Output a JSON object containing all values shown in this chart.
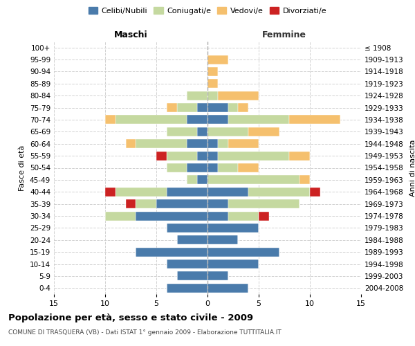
{
  "age_groups": [
    "100+",
    "95-99",
    "90-94",
    "85-89",
    "80-84",
    "75-79",
    "70-74",
    "65-69",
    "60-64",
    "55-59",
    "50-54",
    "45-49",
    "40-44",
    "35-39",
    "30-34",
    "25-29",
    "20-24",
    "15-19",
    "10-14",
    "5-9",
    "0-4"
  ],
  "birth_years": [
    "≤ 1908",
    "1909-1913",
    "1914-1918",
    "1919-1923",
    "1924-1928",
    "1929-1933",
    "1934-1938",
    "1939-1943",
    "1944-1948",
    "1949-1953",
    "1954-1958",
    "1959-1963",
    "1964-1968",
    "1969-1973",
    "1974-1978",
    "1979-1983",
    "1984-1988",
    "1989-1993",
    "1994-1998",
    "1999-2003",
    "2004-2008"
  ],
  "colors": {
    "celibe": "#4a7bab",
    "coniugato": "#c5d9a0",
    "vedovo": "#f5c06e",
    "divorziato": "#cc2222"
  },
  "males": {
    "celibe": [
      0,
      0,
      0,
      0,
      0,
      1,
      2,
      1,
      2,
      1,
      2,
      1,
      4,
      5,
      7,
      4,
      3,
      7,
      4,
      3,
      4
    ],
    "coniugato": [
      0,
      0,
      0,
      0,
      2,
      2,
      7,
      3,
      5,
      3,
      2,
      1,
      5,
      2,
      3,
      0,
      0,
      0,
      0,
      0,
      0
    ],
    "vedovo": [
      0,
      0,
      0,
      0,
      0,
      1,
      1,
      0,
      1,
      0,
      0,
      0,
      0,
      0,
      0,
      0,
      0,
      0,
      0,
      0,
      0
    ],
    "divorziato": [
      0,
      0,
      0,
      0,
      0,
      0,
      0,
      0,
      0,
      1,
      0,
      0,
      1,
      1,
      0,
      0,
      0,
      0,
      0,
      0,
      0
    ]
  },
  "females": {
    "celibe": [
      0,
      0,
      0,
      0,
      0,
      2,
      2,
      0,
      1,
      1,
      1,
      0,
      4,
      2,
      2,
      5,
      3,
      7,
      5,
      2,
      4
    ],
    "coniugato": [
      0,
      0,
      0,
      0,
      1,
      1,
      6,
      4,
      1,
      7,
      2,
      9,
      6,
      7,
      3,
      0,
      0,
      0,
      0,
      0,
      0
    ],
    "vedovo": [
      0,
      2,
      1,
      1,
      4,
      1,
      5,
      3,
      3,
      2,
      2,
      1,
      0,
      0,
      0,
      0,
      0,
      0,
      0,
      0,
      0
    ],
    "divorziato": [
      0,
      0,
      0,
      0,
      0,
      0,
      0,
      0,
      0,
      0,
      0,
      0,
      1,
      0,
      1,
      0,
      0,
      0,
      0,
      0,
      0
    ]
  },
  "xlim": 15,
  "title": "Popolazione per età, sesso e stato civile - 2009",
  "subtitle": "COMUNE DI TRASQUERA (VB) - Dati ISTAT 1° gennaio 2009 - Elaborazione TUTTITALIA.IT",
  "ylabel_left": "Fasce di età",
  "ylabel_right": "Anni di nascita",
  "xlabel_left": "Maschi",
  "xlabel_right": "Femmine",
  "legend_labels": [
    "Celibi/Nubili",
    "Coniugati/e",
    "Vedovi/e",
    "Divorziati/e"
  ],
  "background_color": "#ffffff",
  "grid_color": "#cccccc"
}
